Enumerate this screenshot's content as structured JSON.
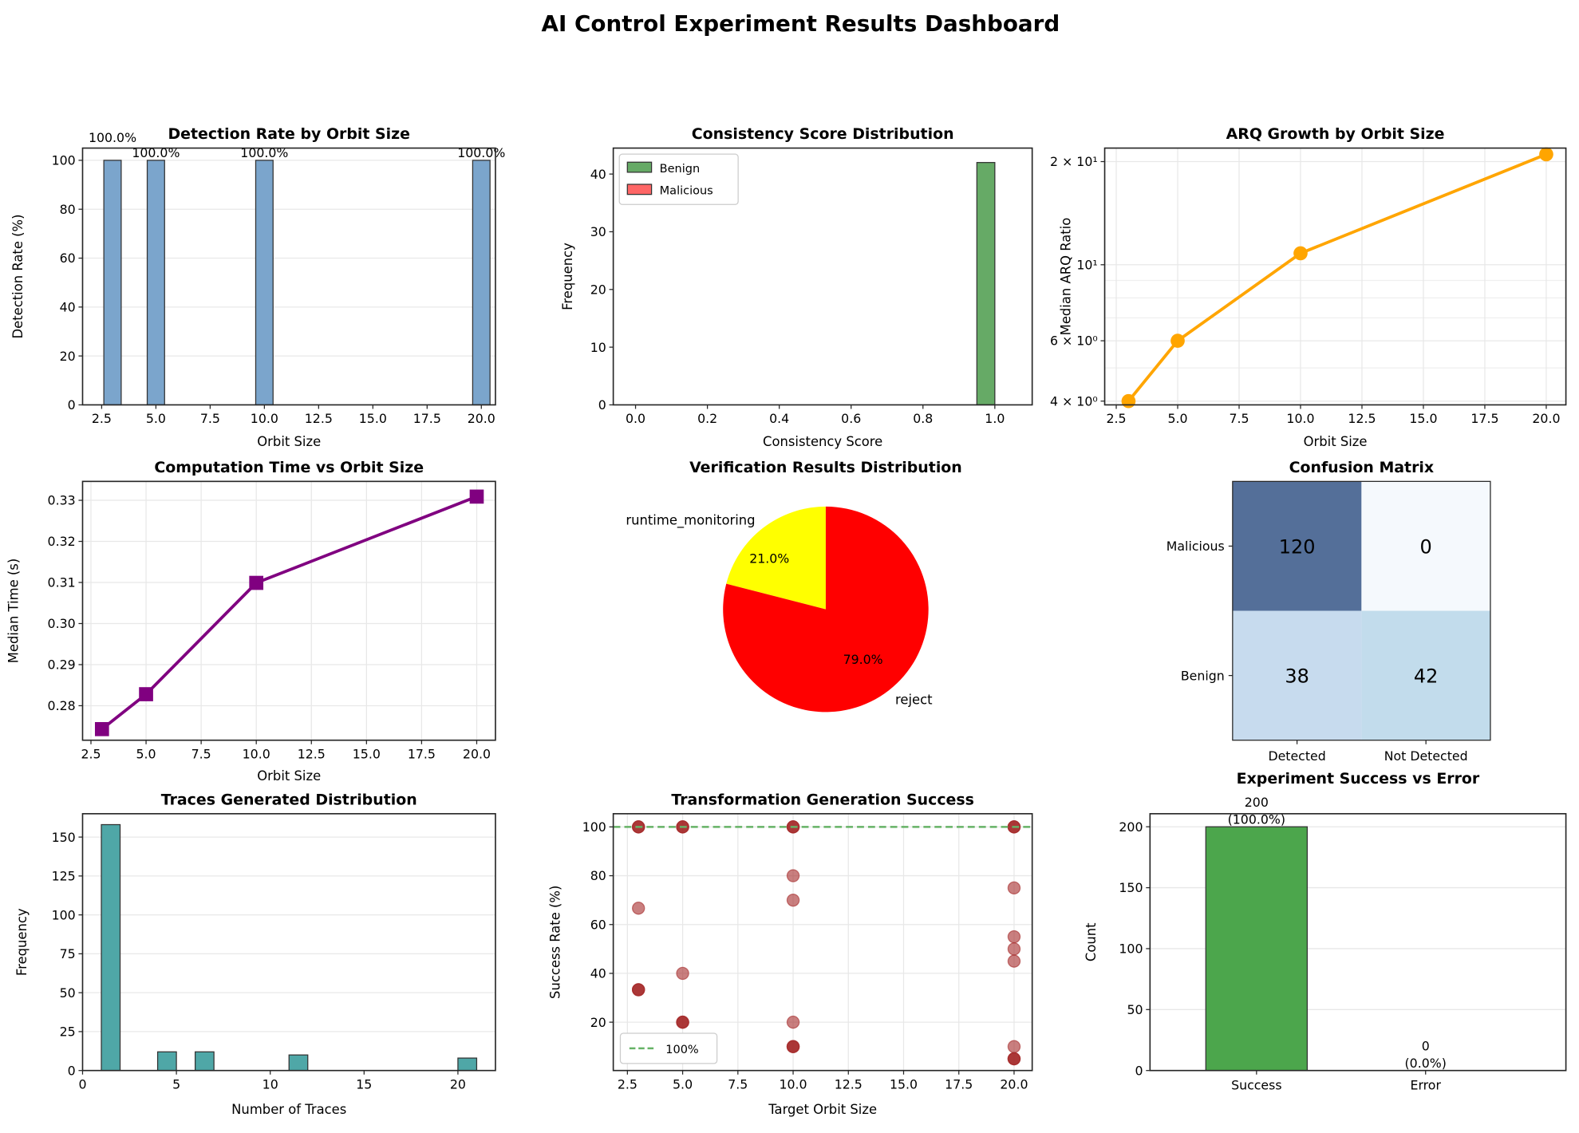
{
  "title": "AI Control Experiment Results Dashboard",
  "chart_data": [
    {
      "type": "bar",
      "title": "Detection Rate by Orbit Size",
      "xlabel": "Orbit Size",
      "ylabel": "Detection Rate (%)",
      "x": [
        3,
        5,
        10,
        20
      ],
      "values": [
        100,
        100,
        100,
        100
      ],
      "data_labels": [
        "100.0%",
        "100.0%",
        "100.0%",
        "100.0%"
      ],
      "xlim": [
        1.62,
        20.65
      ],
      "ylim": [
        0,
        105
      ],
      "x_ticks": [
        "2.5",
        "5.0",
        "7.5",
        "10.0",
        "12.5",
        "15.0",
        "17.5",
        "20.0"
      ],
      "y_ticks": [
        "0",
        "20",
        "40",
        "60",
        "80",
        "100"
      ],
      "grid": "y",
      "color": "#7ba5cc"
    },
    {
      "type": "histogram",
      "title": "Consistency Score Distribution",
      "xlabel": "Consistency Score",
      "ylabel": "Frequency",
      "series": [
        {
          "name": "Benign",
          "color": "#66aa66",
          "bins": [
            [
              0.95,
              1.0,
              42
            ]
          ]
        },
        {
          "name": "Malicious",
          "color": "#ff6666",
          "bins": []
        }
      ],
      "xlim": [
        -0.062,
        1.104
      ],
      "ylim": [
        0,
        44.5
      ],
      "x_ticks": [
        "0.0",
        "0.2",
        "0.4",
        "0.6",
        "0.8",
        "1.0"
      ],
      "y_ticks": [
        "0",
        "10",
        "20",
        "30",
        "40"
      ],
      "grid": "none",
      "legend": "top-left"
    },
    {
      "type": "line",
      "title": "ARQ Growth by Orbit Size",
      "xlabel": "Orbit Size",
      "ylabel": "Median ARQ Ratio",
      "x": [
        3,
        5,
        10,
        20
      ],
      "y": [
        4,
        6,
        10.8,
        21
      ],
      "yscale": "log",
      "xlim": [
        2.03,
        20.8
      ],
      "ylim": [
        3.9,
        21.9
      ],
      "x_ticks": [
        "2.5",
        "5.0",
        "7.5",
        "10.0",
        "12.5",
        "15.0",
        "17.5",
        "20.0"
      ],
      "y_tick_values": [
        4,
        6,
        10,
        20
      ],
      "y_ticks": [
        "4 × 10⁰",
        "6 × 10⁰",
        "10¹",
        "2 × 10¹"
      ],
      "grid": "both",
      "color": "#ffa500",
      "marker": "circle"
    },
    {
      "type": "line",
      "title": "Computation Time vs Orbit Size",
      "xlabel": "Orbit Size",
      "ylabel": "Median Time (s)",
      "x": [
        3,
        5,
        10,
        20
      ],
      "y": [
        0.2743,
        0.2828,
        0.3099,
        0.3309
      ],
      "xlim": [
        2.12,
        20.85
      ],
      "ylim": [
        0.2716,
        0.3346
      ],
      "x_ticks": [
        "2.5",
        "5.0",
        "7.5",
        "10.0",
        "12.5",
        "15.0",
        "17.5",
        "20.0"
      ],
      "y_ticks": [
        "0.28",
        "0.29",
        "0.30",
        "0.31",
        "0.32",
        "0.33"
      ],
      "grid": "both",
      "color": "#800080",
      "marker": "square"
    },
    {
      "type": "pie",
      "title": "Verification Results Distribution",
      "slices": [
        {
          "label": "runtime_monitoring",
          "value": 21.0,
          "pct_label": "21.0%",
          "color": "#ffff00"
        },
        {
          "label": "reject",
          "value": 79.0,
          "pct_label": "79.0%",
          "color": "#ff0000"
        }
      ]
    },
    {
      "type": "heatmap",
      "title": "Confusion Matrix",
      "rows": [
        "Malicious",
        "Benign"
      ],
      "cols": [
        "Detected",
        "Not Detected"
      ],
      "values": [
        [
          120,
          0
        ],
        [
          38,
          42
        ]
      ],
      "colors": [
        [
          "#546f99",
          "#f5f9fd"
        ],
        [
          "#c7dbee",
          "#c2dcec"
        ]
      ]
    },
    {
      "type": "histogram",
      "title": "Traces Generated Distribution",
      "xlabel": "Number of Traces",
      "ylabel": "Frequency",
      "series": [
        {
          "color": "#4fa7a7",
          "bins": [
            [
              1,
              2,
              158
            ],
            [
              4,
              5,
              12
            ],
            [
              6,
              7,
              12
            ],
            [
              11,
              12,
              10
            ],
            [
              20,
              21,
              8
            ]
          ]
        }
      ],
      "xlim": [
        0,
        22
      ],
      "ylim": [
        0,
        165
      ],
      "x_ticks": [
        "0",
        "5",
        "10",
        "15",
        "20"
      ],
      "y_ticks": [
        "0",
        "25",
        "50",
        "75",
        "100",
        "125",
        "150"
      ],
      "grid": "y"
    },
    {
      "type": "scatter",
      "title": "Transformation Generation Success",
      "xlabel": "Target Orbit Size",
      "ylabel": "Success Rate (%)",
      "points": [
        [
          3,
          100
        ],
        [
          3,
          100
        ],
        [
          3,
          100
        ],
        [
          5,
          100
        ],
        [
          5,
          100
        ],
        [
          5,
          100
        ],
        [
          10,
          100
        ],
        [
          10,
          100
        ],
        [
          10,
          100
        ],
        [
          20,
          100
        ],
        [
          20,
          100
        ],
        [
          20,
          100
        ],
        [
          3,
          33.3
        ],
        [
          3,
          33.3
        ],
        [
          3,
          33.3
        ],
        [
          5,
          20
        ],
        [
          5,
          20
        ],
        [
          5,
          20
        ],
        [
          10,
          10
        ],
        [
          10,
          10
        ],
        [
          10,
          10
        ],
        [
          20,
          5
        ],
        [
          20,
          5
        ],
        [
          20,
          5
        ],
        [
          3,
          66.7
        ],
        [
          5,
          40
        ],
        [
          10,
          80
        ],
        [
          10,
          70
        ],
        [
          10,
          20
        ],
        [
          20,
          75
        ],
        [
          20,
          55
        ],
        [
          20,
          50
        ],
        [
          20,
          45
        ],
        [
          20,
          10
        ]
      ],
      "reference_line": {
        "y": 100,
        "label": "100%",
        "color": "#66b266"
      },
      "xlim": [
        1.86,
        20.82
      ],
      "ylim": [
        0.2,
        105.4
      ],
      "x_ticks": [
        "2.5",
        "5.0",
        "7.5",
        "10.0",
        "12.5",
        "15.0",
        "17.5",
        "20.0"
      ],
      "y_ticks": [
        "20",
        "40",
        "60",
        "80",
        "100"
      ],
      "grid": "both",
      "legend": "bottom-left",
      "color": "#a52a2a"
    },
    {
      "type": "bar",
      "title": "Experiment Success vs Error",
      "ylabel": "Count",
      "categories": [
        "Success",
        "Error"
      ],
      "values": [
        200,
        0
      ],
      "data_labels": [
        [
          "200",
          "(100.0%)"
        ],
        [
          "0",
          "(0.0%)"
        ]
      ],
      "colors": [
        "#4ca64c",
        "#cc3333"
      ],
      "ylim": [
        0,
        210.7
      ],
      "y_ticks": [
        "0",
        "50",
        "100",
        "150",
        "200"
      ],
      "grid": "y"
    }
  ]
}
